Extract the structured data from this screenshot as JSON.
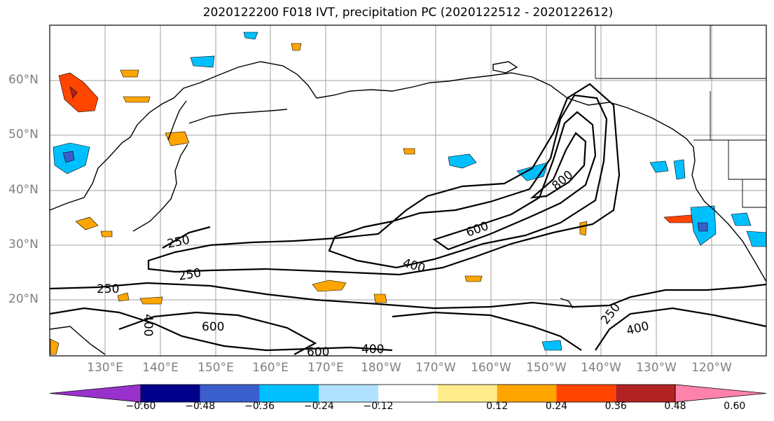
{
  "title": "2020122200 F018 IVT, precipitation PC (2020122512 - 2020122612)",
  "lat_labels": [
    "60°N",
    "50°N",
    "40°N",
    "30°N",
    "20°N"
  ],
  "lon_labels": [
    "130°E",
    "140°E",
    "150°E",
    "160°E",
    "170°E",
    "180°W",
    "170°W",
    "160°W",
    "150°W",
    "140°W",
    "130°W",
    "120°W"
  ],
  "contour_labels": [
    "250",
    "250",
    "250",
    "400",
    "600",
    "800",
    "400",
    "600",
    "600",
    "400",
    "250",
    "400"
  ],
  "colorbar": {
    "ticks": [
      "−0.60",
      "−0.48",
      "−0.36",
      "−0.24",
      "−0.12",
      "0.12",
      "0.24",
      "0.36",
      "0.48",
      "0.60"
    ],
    "colors": [
      "#9932cc",
      "#00008b",
      "#3a5fcd",
      "#00bfff",
      "#b0e2ff",
      "#ffffff",
      "#ffec8b",
      "#ffa500",
      "#ff4500",
      "#b22222",
      "#ff82ab"
    ]
  }
}
